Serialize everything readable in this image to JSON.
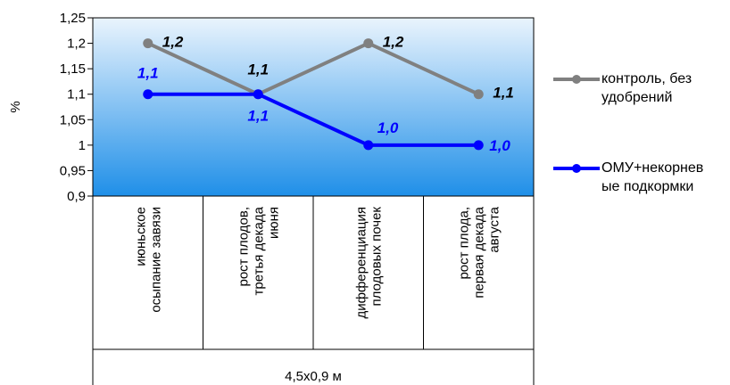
{
  "chart_data": {
    "type": "line",
    "ylabel": "%",
    "ylim": [
      0.9,
      1.25
    ],
    "ytick_labels": [
      "1,25",
      "1,2",
      "1,15",
      "1,1",
      "1,05",
      "1",
      "0,95",
      "0,9"
    ],
    "ytick_values": [
      1.25,
      1.2,
      1.15,
      1.1,
      1.05,
      1.0,
      0.95,
      0.9
    ],
    "categories": [
      [
        "июньское",
        "осыпание завязи"
      ],
      [
        "рост плодов,",
        "третья декада",
        "июня"
      ],
      [
        "дифференциация",
        "плодовых почек"
      ],
      [
        "рост плода,",
        "первая декада",
        "августа"
      ]
    ],
    "group_label": "4,5х0,9 м",
    "series": [
      {
        "name": "контроль, без удобрений",
        "legend_lines": [
          "контроль, без",
          "удобрений"
        ],
        "values": [
          1.2,
          1.1,
          1.2,
          1.1
        ],
        "labels": [
          "1,2",
          "1,1",
          "1,2",
          "1,1"
        ],
        "color": "#808080"
      },
      {
        "name": "ОМУ+некорневые подкормки",
        "legend_lines": [
          "ОМУ+некорнев",
          "ые подкормки"
        ],
        "values": [
          1.1,
          1.1,
          1.0,
          1.0
        ],
        "labels": [
          "1,1",
          "1,1",
          "1,0",
          "1,0"
        ],
        "color": "#0000ff"
      }
    ],
    "grid": false,
    "legend_position": "right",
    "plot_background": [
      "#1f8fe8",
      "#eaf4fd"
    ]
  }
}
